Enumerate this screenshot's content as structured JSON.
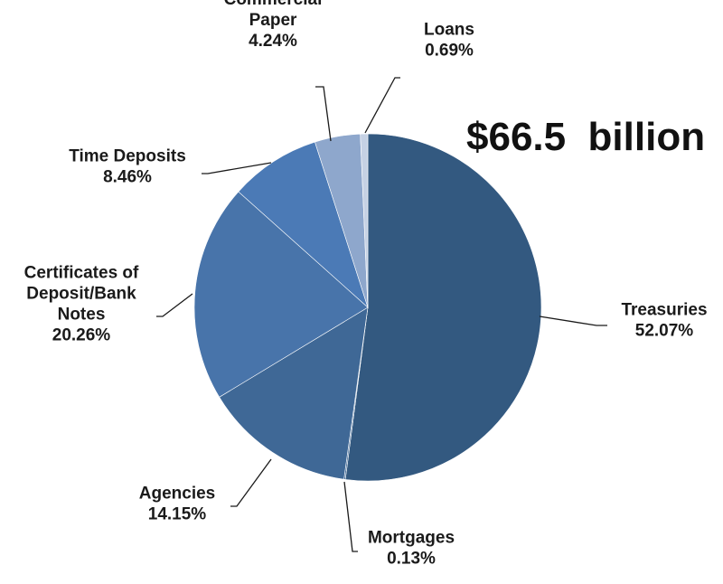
{
  "chart_data": {
    "type": "pie",
    "total_label": "$66.5  billion",
    "slices": [
      {
        "label": [
          "Treasuries"
        ],
        "percent_text": "52.07%",
        "value": 52.07,
        "color": "#335980"
      },
      {
        "label": [
          "Mortgages"
        ],
        "percent_text": "0.13%",
        "value": 0.13,
        "color": "#3f6896"
      },
      {
        "label": [
          "Agencies"
        ],
        "percent_text": "14.15%",
        "value": 14.15,
        "color": "#3f6896"
      },
      {
        "label": [
          "Certificates of",
          "Deposit/Bank",
          "Notes"
        ],
        "percent_text": "20.26%",
        "value": 20.26,
        "color": "#4874aa"
      },
      {
        "label": [
          "Time Deposits"
        ],
        "percent_text": "8.46%",
        "value": 8.46,
        "color": "#4b7ab6"
      },
      {
        "label": [
          "Commercial",
          "Paper"
        ],
        "percent_text": "4.24%",
        "value": 4.24,
        "color": "#8ea7cc"
      },
      {
        "label": [
          "Loans"
        ],
        "percent_text": "0.69%",
        "value": 0.69,
        "color": "#c5d1e4"
      }
    ]
  }
}
